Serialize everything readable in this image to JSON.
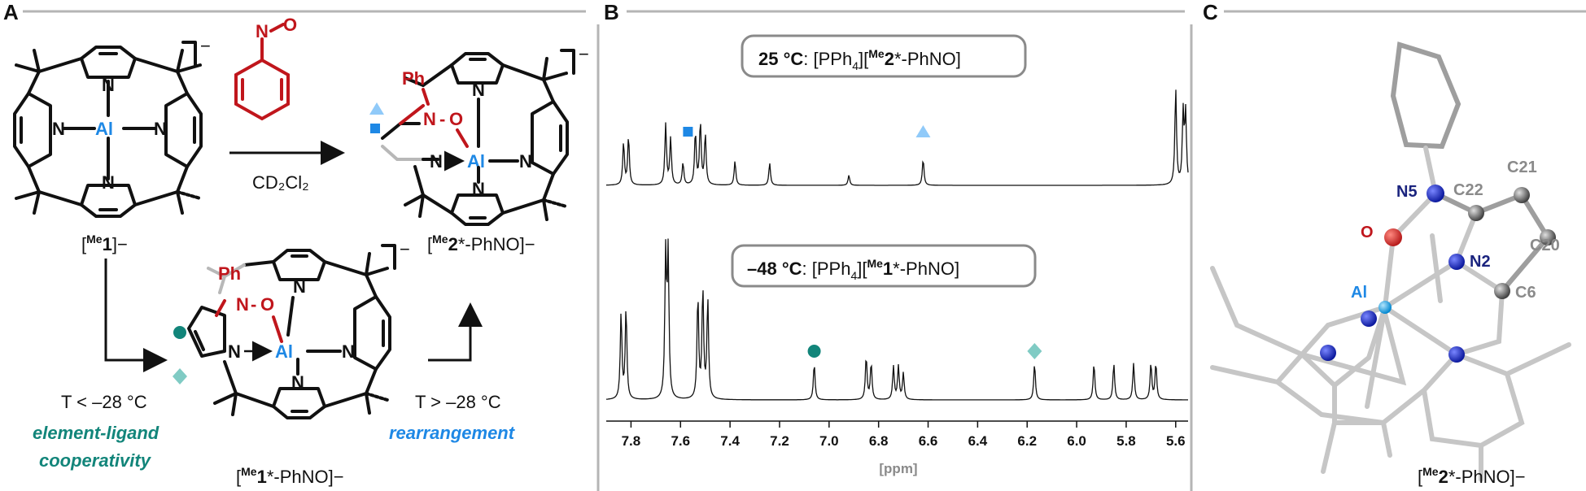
{
  "panels": {
    "a": "A",
    "b": "B",
    "c": "C"
  },
  "scheme": {
    "reagent": "CD₂Cl₂",
    "charge": "−",
    "compound1": {
      "prefix": "[",
      "sup": "Me",
      "num": "1",
      "suffix": "]−"
    },
    "compound2": {
      "prefix": "[",
      "sup": "Me",
      "num": "2",
      "suffix": "*-PhNO]−"
    },
    "compound1star": {
      "prefix": "[",
      "sup": "Me",
      "num": "1",
      "suffix": "*-PhNO]−"
    },
    "cond_low": "T < –28 °C",
    "cond_high": "T > –28 °C",
    "coop_line1": "element-ligand",
    "coop_line2": "cooperativity",
    "rearr": "rearrangement",
    "atoms": {
      "N": "N",
      "Al": "Al",
      "O": "O",
      "Ph": "Ph",
      "NO_N": "N",
      "NO_O": "O"
    },
    "colors": {
      "al_blue": "#1e88e5",
      "red": "#c0161c",
      "teal": "#12857a",
      "light_blue": "#90caf9"
    }
  },
  "nmr": {
    "top_label": {
      "temp": "25 °C",
      "text_pre": ": [PPh",
      "sub": "4",
      "text_mid": "][",
      "sup": "Me",
      "num": "2",
      "text_post": "*-PhNO]"
    },
    "bottom_label": {
      "temp": "–48 °C",
      "text_pre": ": [PPh",
      "sub": "4",
      "text_mid": "][",
      "sup": "Me",
      "num": "1",
      "text_post": "*-PhNO]"
    },
    "axis_title": "[ppm]",
    "ticks": [
      "7.8",
      "7.6",
      "7.4",
      "7.2",
      "7.0",
      "6.8",
      "6.6",
      "6.4",
      "6.2",
      "6.0",
      "5.8",
      "5.6"
    ],
    "markers": [
      {
        "shape": "square",
        "ppm": 7.57,
        "color": "#1e88e5",
        "spectrum": "top"
      },
      {
        "shape": "triangle",
        "ppm": 6.62,
        "color": "#90caf9",
        "spectrum": "top"
      },
      {
        "shape": "circle",
        "ppm": 7.06,
        "color": "#12857a",
        "spectrum": "bottom"
      },
      {
        "shape": "diamond",
        "ppm": 6.17,
        "color": "#80cbc4",
        "spectrum": "bottom"
      }
    ]
  },
  "chart_data": {
    "type": "line",
    "xlabel": "[ppm]",
    "xlim": [
      7.9,
      5.55
    ],
    "x_reversed": true,
    "series": [
      {
        "name": "25 °C: [PPh4][Me2*-PhNO]",
        "peaks_ppm": [
          7.83,
          7.81,
          7.66,
          7.64,
          7.59,
          7.54,
          7.52,
          7.5,
          7.38,
          7.24,
          6.92,
          6.62,
          5.6,
          5.57,
          5.56
        ],
        "rel_intensity": [
          0.42,
          0.48,
          0.6,
          0.46,
          0.22,
          0.52,
          0.62,
          0.5,
          0.24,
          0.22,
          0.1,
          0.26,
          0.95,
          0.7,
          0.7
        ]
      },
      {
        "name": "–48 °C: [PPh4][Me1*-PhNO]",
        "peaks_ppm": [
          7.84,
          7.82,
          7.66,
          7.65,
          7.53,
          7.51,
          7.49,
          7.06,
          6.85,
          6.83,
          6.74,
          6.72,
          6.7,
          6.17,
          5.93,
          5.85,
          5.77,
          5.7,
          5.68
        ],
        "rel_intensity": [
          0.52,
          0.55,
          0.85,
          0.85,
          0.62,
          0.66,
          0.6,
          0.22,
          0.26,
          0.22,
          0.2,
          0.2,
          0.16,
          0.22,
          0.22,
          0.22,
          0.22,
          0.22,
          0.22
        ]
      }
    ]
  },
  "crystal": {
    "labels": {
      "N5": "N5",
      "C22": "C22",
      "C21": "C21",
      "O": "O",
      "N2": "N2",
      "C20": "C20",
      "Al": "Al",
      "C6": "C6"
    },
    "caption": {
      "prefix": "[",
      "sup": "Me",
      "num": "2",
      "suffix": "*-PhNO]−"
    }
  }
}
